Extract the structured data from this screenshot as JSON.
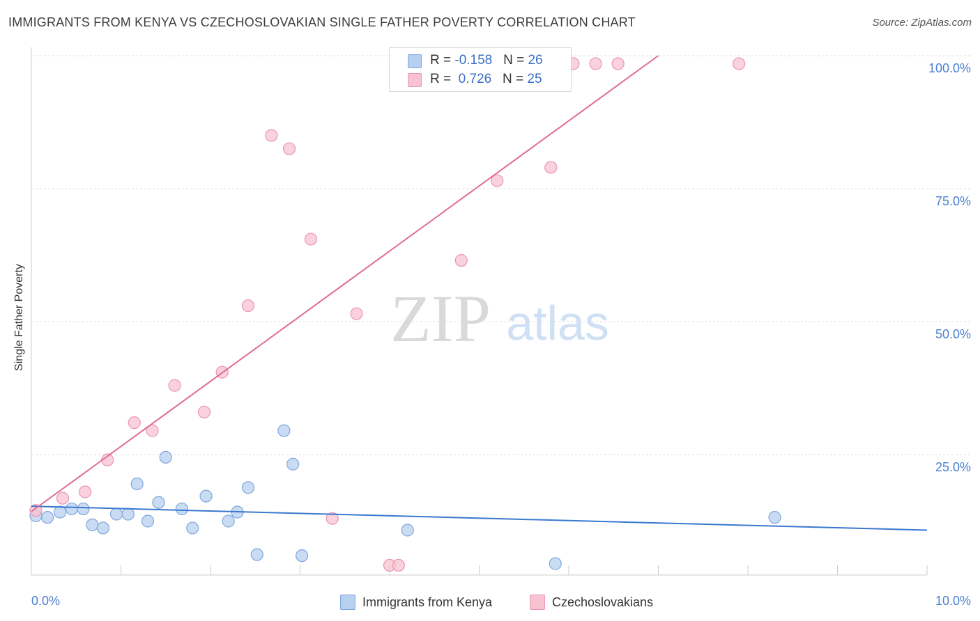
{
  "header": {
    "title": "IMMIGRANTS FROM KENYA VS CZECHOSLOVAKIAN SINGLE FATHER POVERTY CORRELATION CHART",
    "source": "Source: ZipAtlas.com"
  },
  "watermark": {
    "zip": "ZIP",
    "atlas": "atlas"
  },
  "legend": {
    "rows": [
      {
        "r_label": "R = ",
        "r_value": "-0.158",
        "n_label": "N = ",
        "n_value": "26"
      },
      {
        "r_label": "R = ",
        "r_value": "0.726",
        "n_label": "N = ",
        "n_value": "25"
      }
    ]
  },
  "bottom_legend": {
    "items": [
      {
        "label": "Immigrants from Kenya"
      },
      {
        "label": "Czechoslovakians"
      }
    ]
  },
  "colors": {
    "blue_fill": "#b8d0f0",
    "blue_stroke": "#7fa6dc",
    "blue_line": "#3a78d0",
    "pink_fill": "#f7c3d2",
    "pink_stroke": "#eb96b0",
    "pink_line": "#e06b93",
    "axis_text": "#4a7fd0",
    "grid": "#dddddd"
  },
  "chart_data": {
    "type": "scatter",
    "title": "IMMIGRANTS FROM KENYA VS CZECHOSLOVAKIAN SINGLE FATHER POVERTY CORRELATION CHART",
    "xlabel": "",
    "ylabel": "Single Father Poverty",
    "xlim": [
      0,
      10
    ],
    "ylim": [
      0,
      100
    ],
    "x_tick_labels": [
      "0.0%",
      "10.0%"
    ],
    "y_tick_labels": [
      "25.0%",
      "50.0%",
      "75.0%",
      "100.0%"
    ],
    "y_ticks": [
      25,
      50,
      75,
      100
    ],
    "grid": true,
    "series": [
      {
        "name": "Immigrants from Kenya",
        "color": "#7fa6dc",
        "points": [
          [
            0.05,
            13.5
          ],
          [
            0.18,
            13.2
          ],
          [
            0.32,
            14.2
          ],
          [
            0.45,
            14.8
          ],
          [
            0.58,
            14.8
          ],
          [
            0.68,
            11.8
          ],
          [
            0.8,
            11.2
          ],
          [
            0.95,
            13.8
          ],
          [
            1.08,
            13.8
          ],
          [
            1.18,
            19.5
          ],
          [
            1.3,
            12.5
          ],
          [
            1.42,
            16
          ],
          [
            1.5,
            24.5
          ],
          [
            1.68,
            14.8
          ],
          [
            1.8,
            11.2
          ],
          [
            1.95,
            17.2
          ],
          [
            2.2,
            12.5
          ],
          [
            2.3,
            14.2
          ],
          [
            2.42,
            18.8
          ],
          [
            2.52,
            6.2
          ],
          [
            2.82,
            29.5
          ],
          [
            2.92,
            23.2
          ],
          [
            3.02,
            6.0
          ],
          [
            4.2,
            10.8
          ],
          [
            5.85,
            4.5
          ],
          [
            8.3,
            13.2
          ]
        ],
        "trend": {
          "x": [
            0,
            10
          ],
          "y": [
            15.3,
            10.8
          ]
        }
      },
      {
        "name": "Czechoslovakians",
        "color": "#eb96b0",
        "points": [
          [
            0.05,
            14.5
          ],
          [
            0.35,
            16.8
          ],
          [
            0.6,
            18
          ],
          [
            0.85,
            24
          ],
          [
            1.15,
            31
          ],
          [
            1.35,
            29.5
          ],
          [
            1.6,
            38
          ],
          [
            1.93,
            33
          ],
          [
            2.13,
            40.5
          ],
          [
            2.42,
            53
          ],
          [
            2.68,
            85
          ],
          [
            2.88,
            82.5
          ],
          [
            3.12,
            65.5
          ],
          [
            3.36,
            13
          ],
          [
            3.63,
            51.5
          ],
          [
            4.0,
            4.2
          ],
          [
            4.1,
            4.2
          ],
          [
            4.8,
            61.5
          ],
          [
            5.2,
            76.5
          ],
          [
            5.6,
            98.5
          ],
          [
            5.8,
            79
          ],
          [
            6.05,
            98.5
          ],
          [
            6.3,
            98.5
          ],
          [
            6.55,
            98.5
          ],
          [
            7.9,
            98.5
          ]
        ],
        "trend": {
          "x": [
            0,
            7.0
          ],
          "y": [
            14.3,
            100
          ]
        }
      }
    ]
  }
}
